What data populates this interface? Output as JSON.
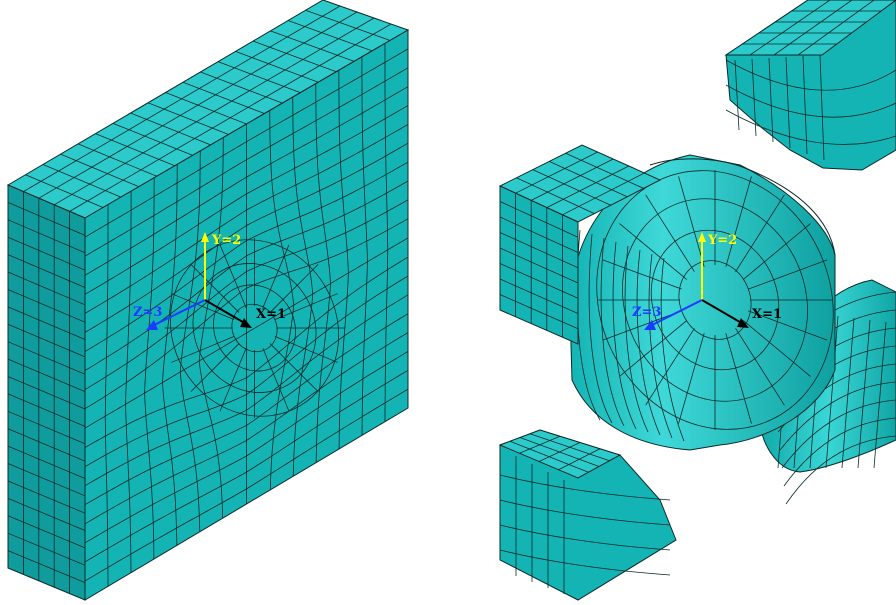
{
  "colors": {
    "background": "#ffffff",
    "mesh_front": "#14b4b4",
    "mesh_side": "#109c9c",
    "mesh_top": "#2ccaca",
    "mesh_highlight": "#3fd8d8",
    "edge": "#0b2a2a",
    "axis_x": "#000000",
    "axis_y": "#ffff00",
    "axis_z": "#1a3cff"
  },
  "left_model": {
    "axes": {
      "x_label": "X=1",
      "y_label": "Y=2",
      "z_label": "Z=3"
    }
  },
  "right_model": {
    "axes": {
      "x_label": "X=1",
      "y_label": "Y=2",
      "z_label": "Z=3"
    }
  }
}
